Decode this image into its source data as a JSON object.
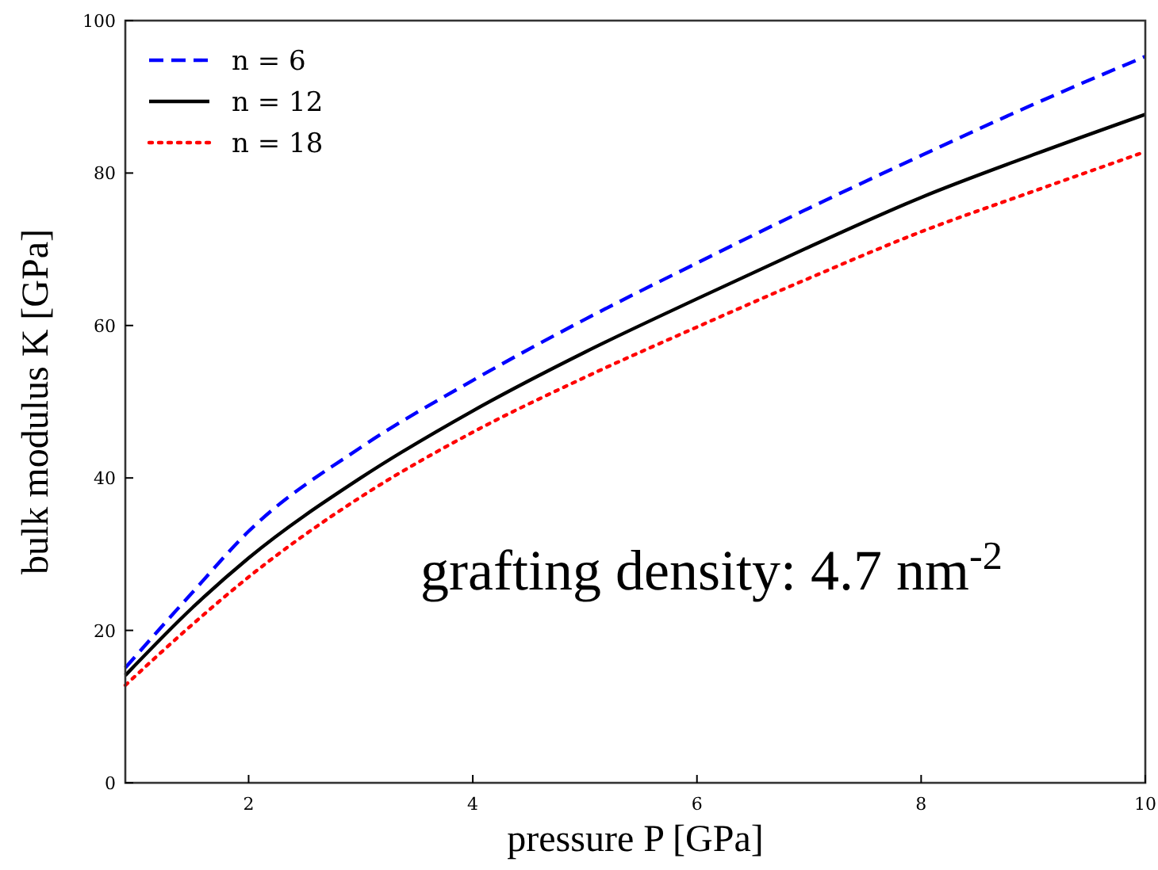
{
  "chart_data": {
    "type": "line",
    "xlabel": "pressure P [GPa]",
    "ylabel": "bulk modulus K [GPa]",
    "x": [
      0.9,
      1.5,
      2,
      3,
      4,
      5,
      6,
      7,
      8,
      9,
      10
    ],
    "series": [
      {
        "name": "n = 6",
        "color": "#0000ff",
        "line_style": "dashed",
        "values": [
          15.1,
          25.0,
          33.0,
          44.0,
          52.8,
          60.8,
          68.2,
          75.4,
          82.3,
          89.0,
          95.3
        ]
      },
      {
        "name": "n = 12",
        "color": "#000000",
        "line_style": "solid",
        "values": [
          14.1,
          23.0,
          29.5,
          40.0,
          48.8,
          56.5,
          63.5,
          70.3,
          76.8,
          82.4,
          87.7
        ]
      },
      {
        "name": "n = 18",
        "color": "#ff0000",
        "line_style": "dotted",
        "values": [
          12.8,
          20.8,
          27.0,
          37.5,
          46.0,
          53.2,
          59.8,
          66.2,
          72.3,
          77.6,
          82.8
        ]
      }
    ],
    "xlim": [
      0.9,
      10
    ],
    "xticks": [
      2,
      4,
      6,
      8,
      10
    ],
    "ylim": [
      0,
      100
    ],
    "yticks": [
      0,
      20,
      40,
      60,
      80,
      100
    ],
    "grid": false,
    "legend": "top left",
    "annotations": [
      "grafting density: 4.7 nm$^{-2}$"
    ]
  }
}
